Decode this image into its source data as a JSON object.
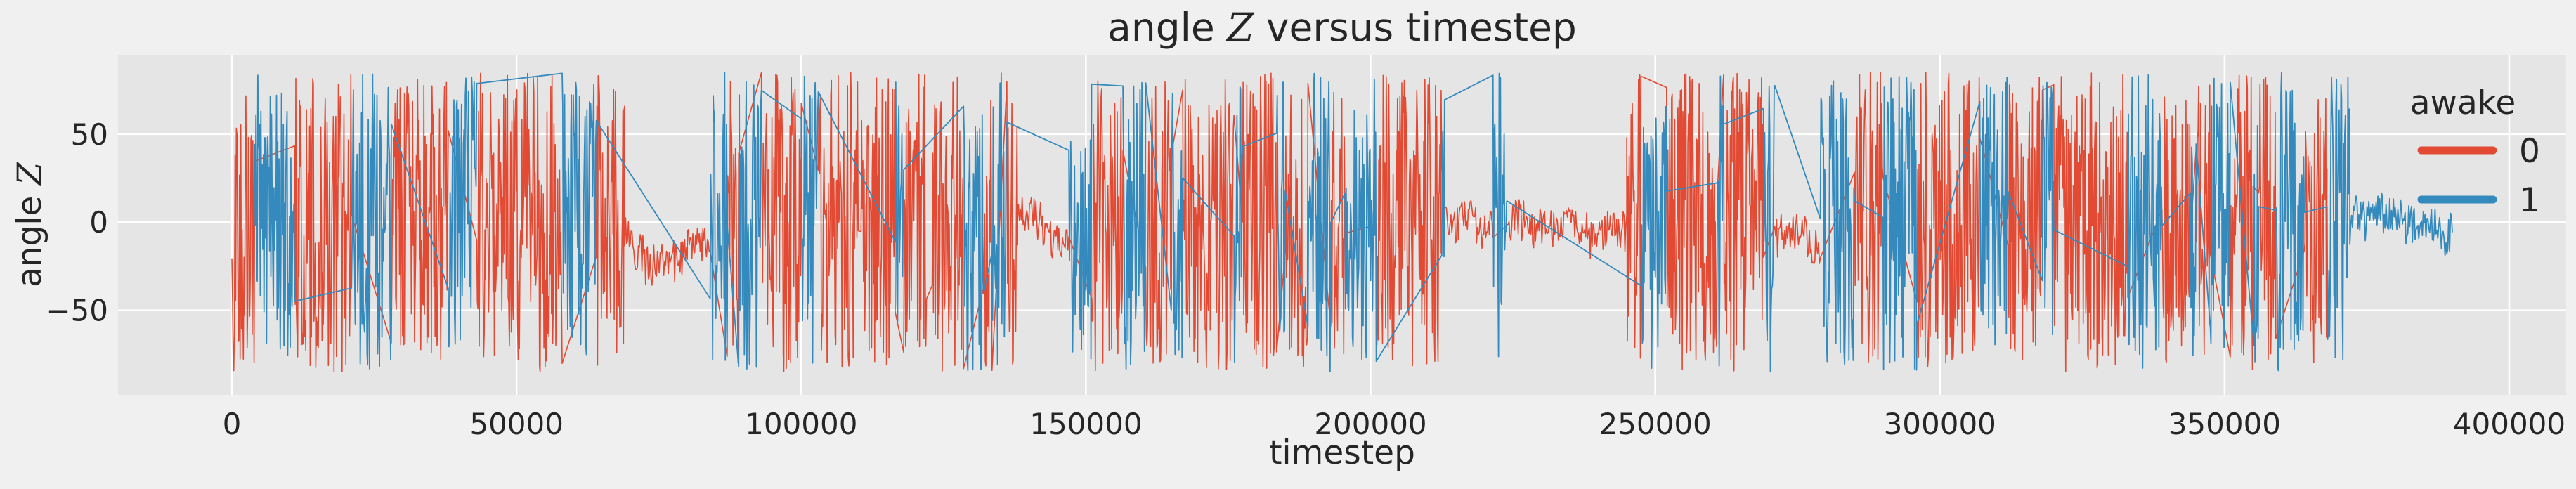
{
  "chart_data": {
    "type": "line",
    "title": {
      "prefix": "angle ",
      "variable": "Z",
      "suffix": " versus timestep"
    },
    "xlabel": "timestep",
    "ylabel": {
      "prefix": "angle ",
      "variable": "Z"
    },
    "xlim": [
      -20000,
      410000
    ],
    "ylim": [
      -98,
      95
    ],
    "xticks": [
      0,
      50000,
      100000,
      150000,
      200000,
      250000,
      300000,
      350000,
      400000
    ],
    "xtick_labels": [
      "0",
      "50000",
      "100000",
      "150000",
      "200000",
      "250000",
      "300000",
      "350000",
      "400000"
    ],
    "yticks": [
      50,
      0,
      -50
    ],
    "ytick_labels": [
      "50",
      "0",
      "−50"
    ],
    "grid": true,
    "legend": {
      "title": "awake",
      "placement": "top-right"
    },
    "series": [
      {
        "name": "0",
        "color": "#E24A33",
        "segments": [
          [
            0,
            4000,
            "active"
          ],
          [
            11000,
            21000,
            "active"
          ],
          [
            28000,
            38000,
            "active"
          ],
          [
            43000,
            58000,
            "active"
          ],
          [
            64000,
            66000,
            "active"
          ],
          [
            66500,
            69000,
            "spike"
          ],
          [
            69000,
            80000,
            "quiet"
          ],
          [
            80000,
            84000,
            "quiet"
          ],
          [
            87000,
            89000,
            "active"
          ],
          [
            93000,
            100000,
            "active"
          ],
          [
            103000,
            110000,
            "active"
          ],
          [
            110500,
            116500,
            "active"
          ],
          [
            118000,
            122000,
            "active"
          ],
          [
            123000,
            126000,
            "active"
          ],
          [
            126000,
            128500,
            "active"
          ],
          [
            132000,
            133500,
            "active"
          ],
          [
            136000,
            138000,
            "active"
          ],
          [
            138000,
            147000,
            "quiet"
          ],
          [
            151000,
            156500,
            "active"
          ],
          [
            160500,
            165000,
            "active"
          ],
          [
            167000,
            176000,
            "active"
          ],
          [
            177500,
            183500,
            "active"
          ],
          [
            185000,
            189000,
            "active"
          ],
          [
            193000,
            195500,
            "active"
          ],
          [
            201000,
            212500,
            "active"
          ],
          [
            213000,
            221500,
            "quiet"
          ],
          [
            224000,
            245000,
            "quiet"
          ],
          [
            245000,
            247500,
            "active"
          ],
          [
            252000,
            261000,
            "active"
          ],
          [
            262000,
            263500,
            "active"
          ],
          [
            263500,
            269000,
            "active"
          ],
          [
            271000,
            279000,
            "quiet"
          ],
          [
            285000,
            290000,
            "active"
          ],
          [
            296000,
            303000,
            "active"
          ],
          [
            303000,
            307000,
            "active"
          ],
          [
            312000,
            318000,
            "active"
          ],
          [
            320000,
            333000,
            "active"
          ],
          [
            339000,
            344000,
            "active"
          ],
          [
            345000,
            347500,
            "active"
          ],
          [
            351000,
            355000,
            "active"
          ],
          [
            356000,
            359000,
            "active"
          ],
          [
            364000,
            368000,
            "active"
          ]
        ]
      },
      {
        "name": "1",
        "color": "#348ABD",
        "segments": [
          [
            4000,
            11000,
            "active"
          ],
          [
            21000,
            28000,
            "active"
          ],
          [
            38000,
            43000,
            "active"
          ],
          [
            58000,
            64000,
            "active"
          ],
          [
            84000,
            87000,
            "active"
          ],
          [
            89000,
            93000,
            "active"
          ],
          [
            100000,
            103000,
            "active"
          ],
          [
            116500,
            118000,
            "active"
          ],
          [
            128500,
            132000,
            "active"
          ],
          [
            133500,
            136000,
            "active"
          ],
          [
            147000,
            151000,
            "active"
          ],
          [
            156500,
            160500,
            "active"
          ],
          [
            165000,
            167000,
            "active"
          ],
          [
            176000,
            177500,
            "active"
          ],
          [
            183500,
            185000,
            "active"
          ],
          [
            189000,
            193000,
            "active"
          ],
          [
            195500,
            201000,
            "active"
          ],
          [
            212500,
            213000,
            "active"
          ],
          [
            221500,
            224000,
            "active"
          ],
          [
            247500,
            252000,
            "active"
          ],
          [
            261000,
            262000,
            "active"
          ],
          [
            269000,
            271000,
            "active"
          ],
          [
            279000,
            285000,
            "active"
          ],
          [
            290000,
            296000,
            "active"
          ],
          [
            307000,
            312000,
            "active"
          ],
          [
            318000,
            320000,
            "active"
          ],
          [
            333000,
            339000,
            "active"
          ],
          [
            344000,
            345000,
            "active"
          ],
          [
            347500,
            351000,
            "active"
          ],
          [
            355000,
            356000,
            "active"
          ],
          [
            359000,
            364000,
            "active"
          ],
          [
            368000,
            372000,
            "active"
          ],
          [
            372000,
            390000,
            "quiet"
          ]
        ]
      }
    ]
  }
}
